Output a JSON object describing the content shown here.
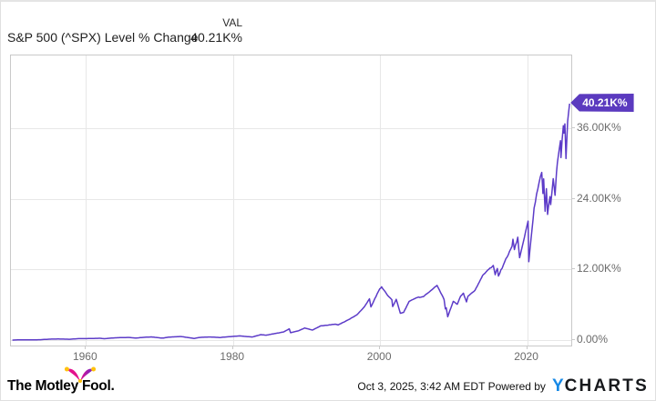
{
  "header": {
    "title": "S&P 500 (^SPX) Level % Change",
    "val_label": "VAL",
    "val_value": "40.21K%"
  },
  "badge": {
    "label": "40.21K%",
    "color": "#5b3abf"
  },
  "chart_data": {
    "type": "line",
    "title": "S&P 500 (^SPX) Level % Change",
    "y_unit": "K% (thousands of percent, cumulative % change of index level since 1950)",
    "xlim": [
      1949.8,
      2026.0
    ],
    "ylim": [
      -0.93,
      48.4
    ],
    "grid": true,
    "legend": "none",
    "line_color": "#5c3bc8",
    "grid_color": "#e7e7e7",
    "border_color": "#c9c9c9",
    "x_ticks": [
      {
        "value": 1960,
        "label": "1960"
      },
      {
        "value": 1980,
        "label": "1980"
      },
      {
        "value": 2000,
        "label": "2000"
      },
      {
        "value": 2020,
        "label": "2020"
      }
    ],
    "y_ticks": [
      {
        "value": 36,
        "label": "36.00K%"
      },
      {
        "value": 24,
        "label": "24.00K%"
      },
      {
        "value": 12,
        "label": "12.00K%"
      },
      {
        "value": 0,
        "label": "0.00%"
      }
    ],
    "end_value_label": "40.21K%",
    "series": [
      {
        "name": "S&P 500 (^SPX) Level % Change",
        "color": "#5c3bc8",
        "points": [
          [
            1950.0,
            0.0
          ],
          [
            1951.0,
            0.032
          ],
          [
            1952.0,
            0.044
          ],
          [
            1953.2,
            0.038
          ],
          [
            1954.0,
            0.074
          ],
          [
            1955.0,
            0.152
          ],
          [
            1956.3,
            0.182
          ],
          [
            1957.8,
            0.134
          ],
          [
            1959.0,
            0.242
          ],
          [
            1960.0,
            0.248
          ],
          [
            1961.9,
            0.308
          ],
          [
            1962.5,
            0.224
          ],
          [
            1963.0,
            0.29
          ],
          [
            1964.0,
            0.386
          ],
          [
            1965.9,
            0.452
          ],
          [
            1966.7,
            0.338
          ],
          [
            1967.7,
            0.446
          ],
          [
            1968.9,
            0.536
          ],
          [
            1970.4,
            0.332
          ],
          [
            1971.3,
            0.5
          ],
          [
            1972.9,
            0.608
          ],
          [
            1974.7,
            0.278
          ],
          [
            1975.5,
            0.452
          ],
          [
            1976.8,
            0.53
          ],
          [
            1978.2,
            0.434
          ],
          [
            1979.0,
            0.518
          ],
          [
            1980.9,
            0.71
          ],
          [
            1982.6,
            0.518
          ],
          [
            1983.8,
            0.92
          ],
          [
            1984.5,
            0.83
          ],
          [
            1985.9,
            1.16
          ],
          [
            1986.9,
            1.383
          ],
          [
            1987.65,
            1.917
          ],
          [
            1987.82,
            1.25
          ],
          [
            1988.9,
            1.569
          ],
          [
            1989.75,
            2.049
          ],
          [
            1990.8,
            1.7
          ],
          [
            1991.9,
            2.403
          ],
          [
            1993.9,
            2.697
          ],
          [
            1994.3,
            2.571
          ],
          [
            1995.9,
            3.591
          ],
          [
            1996.9,
            4.342
          ],
          [
            1997.9,
            5.723
          ],
          [
            1998.55,
            7.019
          ],
          [
            1998.75,
            5.644
          ],
          [
            1999.95,
            8.717
          ],
          [
            2000.2,
            9.066
          ],
          [
            2000.9,
            7.823
          ],
          [
            2001.6,
            6.862
          ],
          [
            2001.72,
            5.698
          ],
          [
            2002.2,
            6.922
          ],
          [
            2002.75,
            4.563
          ],
          [
            2003.2,
            4.702
          ],
          [
            2003.95,
            6.574
          ],
          [
            2004.9,
            7.174
          ],
          [
            2005.9,
            7.39
          ],
          [
            2006.9,
            8.411
          ],
          [
            2007.75,
            9.293
          ],
          [
            2008.45,
            7.582
          ],
          [
            2008.7,
            6.898
          ],
          [
            2008.88,
            5.302
          ],
          [
            2009.0,
            5.488
          ],
          [
            2009.2,
            3.963
          ],
          [
            2009.95,
            6.592
          ],
          [
            2010.5,
            6.088
          ],
          [
            2010.95,
            7.45
          ],
          [
            2011.33,
            7.972
          ],
          [
            2011.75,
            6.496
          ],
          [
            2011.95,
            7.45
          ],
          [
            2012.9,
            8.459
          ],
          [
            2013.95,
            10.992
          ],
          [
            2014.95,
            12.258
          ],
          [
            2015.4,
            12.69
          ],
          [
            2015.65,
            11.112
          ],
          [
            2015.95,
            12.168
          ],
          [
            2016.1,
            10.878
          ],
          [
            2016.95,
            13.338
          ],
          [
            2017.95,
            15.95
          ],
          [
            2018.07,
            17.143
          ],
          [
            2018.27,
            15.391
          ],
          [
            2018.73,
            17.491
          ],
          [
            2018.98,
            14.011
          ],
          [
            2019.95,
            19.293
          ],
          [
            2020.13,
            20.223
          ],
          [
            2020.22,
            13.327
          ],
          [
            2020.95,
            22.444
          ],
          [
            2021.45,
            25.692
          ],
          [
            2021.98,
            28.507
          ],
          [
            2022.15,
            24.929
          ],
          [
            2022.24,
            27.408
          ],
          [
            2022.45,
            21.911
          ],
          [
            2022.62,
            25.74
          ],
          [
            2022.78,
            21.371
          ],
          [
            2023.1,
            24.39
          ],
          [
            2023.2,
            23.04
          ],
          [
            2023.55,
            27.444
          ],
          [
            2023.8,
            24.611
          ],
          [
            2023.99,
            28.531
          ],
          [
            2024.25,
            31.436
          ],
          [
            2024.54,
            33.915
          ],
          [
            2024.6,
            31.028
          ],
          [
            2024.92,
            36.454
          ],
          [
            2025.0,
            35.199
          ],
          [
            2025.13,
            36.778
          ],
          [
            2025.28,
            30.871
          ],
          [
            2025.5,
            37.143
          ],
          [
            2025.78,
            40.21
          ]
        ]
      }
    ]
  },
  "footer": {
    "attribution": "The Motley Fool.",
    "timestamp": "Oct 3, 2025, 3:42 AM EDT",
    "powered_by": "Powered by",
    "ycharts_y": "Y",
    "ycharts_rest": "CHARTS",
    "ycharts_blue": "#1789e6",
    "fool_magenta": "#e4118d",
    "fool_purple": "#6d28c9",
    "fool_yellow": "#ffc20e"
  }
}
